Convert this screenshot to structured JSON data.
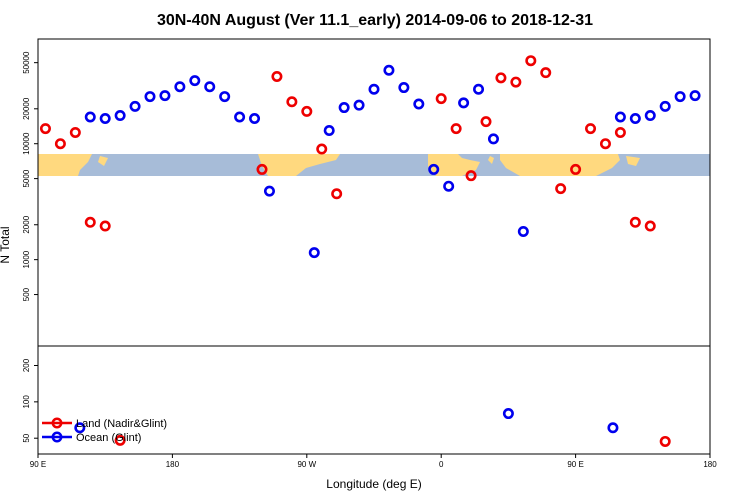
{
  "chart_data": {
    "type": "scatter",
    "title": "30N-40N August (Ver 11.1_early)   2014-09-06 to 2018-12-31",
    "xlabel": "Longitude (deg E)",
    "ylabel": "N Total",
    "x_ticks": [
      {
        "value": 90,
        "label": "90 E"
      },
      {
        "value": 180,
        "label": "180"
      },
      {
        "value": 270,
        "label": "90 W"
      },
      {
        "value": 360,
        "label": "0"
      },
      {
        "value": 450,
        "label": "90 E"
      },
      {
        "value": 540,
        "label": "180"
      }
    ],
    "xlim": [
      90,
      540
    ],
    "upper_panel": {
      "scale": "log",
      "ylim": [
        180,
        80000
      ],
      "yticks": [
        {
          "value": 500,
          "label": "500"
        },
        {
          "value": 1000,
          "label": "1000"
        },
        {
          "value": 2000,
          "label": "2000"
        },
        {
          "value": 5000,
          "label": "5000"
        },
        {
          "value": 10000,
          "label": "10000"
        },
        {
          "value": 20000,
          "label": "20000"
        },
        {
          "value": 50000,
          "label": "50000"
        }
      ]
    },
    "lower_panel": {
      "scale": "log",
      "ylim": [
        37,
        290
      ],
      "yticks": [
        {
          "value": 50,
          "label": "50"
        },
        {
          "value": 100,
          "label": "100"
        },
        {
          "value": 200,
          "label": "200"
        }
      ]
    },
    "series": [
      {
        "name": "Land (Nadir&Glint)",
        "color": "#ee0000",
        "points": [
          {
            "x": 95,
            "y": 13500
          },
          {
            "x": 105,
            "y": 10000
          },
          {
            "x": 115,
            "y": 12500
          },
          {
            "x": 125,
            "y": 2100
          },
          {
            "x": 135,
            "y": 1950
          },
          {
            "x": 145,
            "y": 48
          },
          {
            "x": 240,
            "y": 6000
          },
          {
            "x": 250,
            "y": 38000
          },
          {
            "x": 260,
            "y": 23000
          },
          {
            "x": 270,
            "y": 19000
          },
          {
            "x": 280,
            "y": 9000
          },
          {
            "x": 290,
            "y": 3700
          },
          {
            "x": 360,
            "y": 24500
          },
          {
            "x": 370,
            "y": 13500
          },
          {
            "x": 380,
            "y": 5300
          },
          {
            "x": 390,
            "y": 15500
          },
          {
            "x": 400,
            "y": 37000
          },
          {
            "x": 410,
            "y": 34000
          },
          {
            "x": 420,
            "y": 52000
          },
          {
            "x": 430,
            "y": 41000
          },
          {
            "x": 440,
            "y": 4100
          },
          {
            "x": 450,
            "y": 6000
          },
          {
            "x": 460,
            "y": 13500
          },
          {
            "x": 470,
            "y": 10000
          },
          {
            "x": 480,
            "y": 12500
          },
          {
            "x": 490,
            "y": 2100
          },
          {
            "x": 500,
            "y": 1950
          },
          {
            "x": 510,
            "y": 47
          }
        ]
      },
      {
        "name": "Ocean (Glint)",
        "color": "#0000ee",
        "points": [
          {
            "x": 118,
            "y": 61
          },
          {
            "x": 125,
            "y": 17000
          },
          {
            "x": 135,
            "y": 16500
          },
          {
            "x": 145,
            "y": 17500
          },
          {
            "x": 155,
            "y": 21000
          },
          {
            "x": 165,
            "y": 25500
          },
          {
            "x": 175,
            "y": 26000
          },
          {
            "x": 185,
            "y": 31000
          },
          {
            "x": 195,
            "y": 35000
          },
          {
            "x": 205,
            "y": 31000
          },
          {
            "x": 215,
            "y": 25500
          },
          {
            "x": 225,
            "y": 17000
          },
          {
            "x": 235,
            "y": 16500
          },
          {
            "x": 245,
            "y": 3900
          },
          {
            "x": 275,
            "y": 1150
          },
          {
            "x": 285,
            "y": 13000
          },
          {
            "x": 295,
            "y": 20500
          },
          {
            "x": 305,
            "y": 21500
          },
          {
            "x": 315,
            "y": 29500
          },
          {
            "x": 325,
            "y": 43000
          },
          {
            "x": 335,
            "y": 30500
          },
          {
            "x": 345,
            "y": 22000
          },
          {
            "x": 355,
            "y": 6000
          },
          {
            "x": 365,
            "y": 4300
          },
          {
            "x": 375,
            "y": 22500
          },
          {
            "x": 385,
            "y": 29500
          },
          {
            "x": 395,
            "y": 11000
          },
          {
            "x": 405,
            "y": 80
          },
          {
            "x": 415,
            "y": 1750
          },
          {
            "x": 475,
            "y": 61
          },
          {
            "x": 480,
            "y": 17000
          },
          {
            "x": 490,
            "y": 16500
          },
          {
            "x": 500,
            "y": 17500
          },
          {
            "x": 510,
            "y": 21000
          },
          {
            "x": 520,
            "y": 25500
          },
          {
            "x": 530,
            "y": 26000
          }
        ]
      }
    ],
    "legend": {
      "position": "bottom-left"
    }
  }
}
